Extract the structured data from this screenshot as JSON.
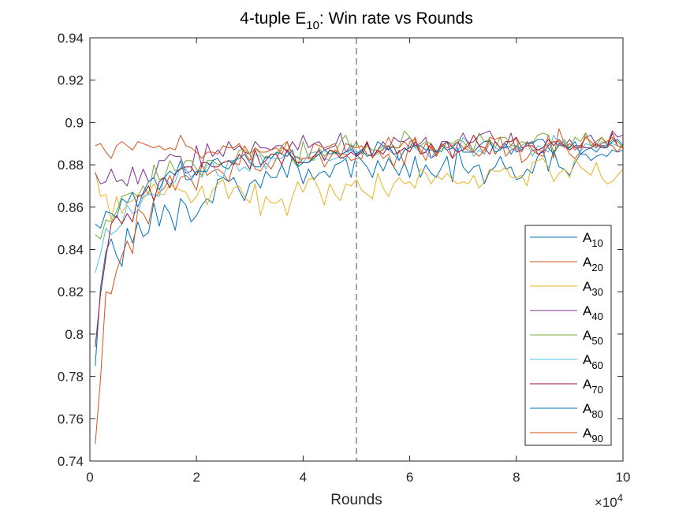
{
  "chart_data": {
    "type": "line",
    "title": {
      "prefix": "4-tuple E",
      "sub": "10",
      "suffix": ": Win rate vs Rounds"
    },
    "xlabel": "Rounds",
    "ylabel": "",
    "x_exponent_label": {
      "base": "×10",
      "exp": "4"
    },
    "xlim": [
      0,
      100000
    ],
    "ylim": [
      0.74,
      0.94
    ],
    "x_ticks": [
      0,
      20000,
      40000,
      60000,
      80000,
      100000
    ],
    "x_tick_labels": [
      "0",
      "2",
      "4",
      "6",
      "8",
      "10"
    ],
    "y_ticks": [
      0.74,
      0.76,
      0.78,
      0.8,
      0.82,
      0.84,
      0.86,
      0.88,
      0.9,
      0.92,
      0.94
    ],
    "y_tick_labels": [
      "0.74",
      "0.76",
      "0.78",
      "0.8",
      "0.82",
      "0.84",
      "0.86",
      "0.88",
      "0.9",
      "0.92",
      "0.94"
    ],
    "vline_x": 50000,
    "grid": false,
    "legend_position": "bottom-right",
    "x_sampling": {
      "start": 1000,
      "step": 1000,
      "count": 100
    },
    "series": [
      {
        "name": "A",
        "sub": "10",
        "color": "#0072BD",
        "values": [
          0.785,
          0.822,
          0.839,
          0.845,
          0.837,
          0.832,
          0.85,
          0.843,
          0.853,
          0.846,
          0.848,
          0.862,
          0.851,
          0.861,
          0.857,
          0.849,
          0.864,
          0.861,
          0.853,
          0.856,
          0.861,
          0.864,
          0.862,
          0.873,
          0.874,
          0.872,
          0.874,
          0.868,
          0.863,
          0.871,
          0.873,
          0.869,
          0.877,
          0.874,
          0.874,
          0.88,
          0.874,
          0.884,
          0.879,
          0.871,
          0.878,
          0.873,
          0.876,
          0.877,
          0.874,
          0.88,
          0.881,
          0.883,
          0.874,
          0.885,
          0.882,
          0.879,
          0.874,
          0.882,
          0.877,
          0.883,
          0.879,
          0.875,
          0.881,
          0.874,
          0.884,
          0.874,
          0.88,
          0.876,
          0.874,
          0.879,
          0.884,
          0.872,
          0.888,
          0.879,
          0.876,
          0.879,
          0.88,
          0.871,
          0.877,
          0.879,
          0.884,
          0.878,
          0.879,
          0.873,
          0.874,
          0.878,
          0.876,
          0.884,
          0.887,
          0.877,
          0.887,
          0.879,
          0.878,
          0.875,
          0.881,
          0.885,
          0.885,
          0.882,
          0.884,
          0.885,
          0.884,
          0.887,
          0.886,
          0.887
        ]
      },
      {
        "name": "A",
        "sub": "20",
        "color": "#D95319",
        "values": [
          0.748,
          0.779,
          0.82,
          0.819,
          0.83,
          0.837,
          0.844,
          0.838,
          0.859,
          0.857,
          0.852,
          0.864,
          0.867,
          0.869,
          0.875,
          0.868,
          0.874,
          0.875,
          0.873,
          0.868,
          0.88,
          0.875,
          0.877,
          0.878,
          0.876,
          0.872,
          0.881,
          0.88,
          0.889,
          0.885,
          0.878,
          0.877,
          0.881,
          0.878,
          0.883,
          0.888,
          0.887,
          0.883,
          0.88,
          0.883,
          0.883,
          0.884,
          0.885,
          0.879,
          0.883,
          0.887,
          0.885,
          0.885,
          0.882,
          0.883,
          0.883,
          0.891,
          0.883,
          0.887,
          0.883,
          0.885,
          0.879,
          0.887,
          0.88,
          0.891,
          0.892,
          0.887,
          0.882,
          0.889,
          0.884,
          0.889,
          0.887,
          0.883,
          0.886,
          0.887,
          0.891,
          0.886,
          0.889,
          0.885,
          0.892,
          0.885,
          0.888,
          0.888,
          0.889,
          0.893,
          0.881,
          0.883,
          0.887,
          0.887,
          0.886,
          0.894,
          0.883,
          0.897,
          0.89,
          0.885,
          0.883,
          0.886,
          0.895,
          0.889,
          0.891,
          0.893,
          0.89,
          0.889,
          0.886,
          0.89
        ]
      },
      {
        "name": "A",
        "sub": "30",
        "color": "#EDB120",
        "values": [
          0.877,
          0.865,
          0.866,
          0.854,
          0.865,
          0.857,
          0.862,
          0.863,
          0.866,
          0.864,
          0.867,
          0.871,
          0.866,
          0.866,
          0.871,
          0.869,
          0.868,
          0.867,
          0.862,
          0.865,
          0.87,
          0.861,
          0.868,
          0.871,
          0.873,
          0.864,
          0.869,
          0.87,
          0.865,
          0.862,
          0.871,
          0.856,
          0.865,
          0.862,
          0.862,
          0.864,
          0.856,
          0.865,
          0.872,
          0.867,
          0.873,
          0.874,
          0.868,
          0.861,
          0.871,
          0.866,
          0.863,
          0.871,
          0.87,
          0.873,
          0.868,
          0.866,
          0.864,
          0.876,
          0.869,
          0.865,
          0.871,
          0.874,
          0.871,
          0.872,
          0.869,
          0.878,
          0.876,
          0.871,
          0.875,
          0.873,
          0.876,
          0.873,
          0.871,
          0.872,
          0.871,
          0.875,
          0.869,
          0.872,
          0.878,
          0.877,
          0.877,
          0.879,
          0.874,
          0.874,
          0.875,
          0.87,
          0.881,
          0.882,
          0.883,
          0.879,
          0.872,
          0.876,
          0.878,
          0.874,
          0.883,
          0.879,
          0.877,
          0.875,
          0.881,
          0.874,
          0.871,
          0.872,
          0.875,
          0.878
        ]
      },
      {
        "name": "A",
        "sub": "40",
        "color": "#7E2F8E",
        "values": [
          0.876,
          0.871,
          0.872,
          0.878,
          0.872,
          0.873,
          0.87,
          0.879,
          0.871,
          0.878,
          0.872,
          0.874,
          0.882,
          0.882,
          0.885,
          0.884,
          0.884,
          0.876,
          0.877,
          0.889,
          0.879,
          0.89,
          0.884,
          0.887,
          0.884,
          0.891,
          0.887,
          0.889,
          0.886,
          0.885,
          0.891,
          0.888,
          0.888,
          0.887,
          0.889,
          0.889,
          0.886,
          0.891,
          0.887,
          0.894,
          0.888,
          0.89,
          0.891,
          0.887,
          0.888,
          0.889,
          0.895,
          0.886,
          0.889,
          0.884,
          0.887,
          0.89,
          0.884,
          0.887,
          0.891,
          0.887,
          0.893,
          0.891,
          0.891,
          0.893,
          0.889,
          0.89,
          0.893,
          0.883,
          0.885,
          0.891,
          0.891,
          0.883,
          0.89,
          0.895,
          0.89,
          0.891,
          0.894,
          0.895,
          0.896,
          0.891,
          0.888,
          0.888,
          0.895,
          0.886,
          0.887,
          0.89,
          0.891,
          0.885,
          0.886,
          0.889,
          0.891,
          0.889,
          0.889,
          0.892,
          0.888,
          0.888,
          0.893,
          0.894,
          0.889,
          0.889,
          0.889,
          0.896,
          0.893,
          0.894
        ]
      },
      {
        "name": "A",
        "sub": "50",
        "color": "#77AC30",
        "values": [
          0.847,
          0.845,
          0.854,
          0.853,
          0.858,
          0.865,
          0.866,
          0.867,
          0.865,
          0.87,
          0.866,
          0.88,
          0.873,
          0.874,
          0.882,
          0.877,
          0.878,
          0.882,
          0.882,
          0.878,
          0.875,
          0.882,
          0.882,
          0.88,
          0.881,
          0.882,
          0.881,
          0.887,
          0.887,
          0.885,
          0.888,
          0.885,
          0.883,
          0.885,
          0.885,
          0.889,
          0.891,
          0.882,
          0.879,
          0.891,
          0.883,
          0.882,
          0.888,
          0.884,
          0.887,
          0.885,
          0.891,
          0.894,
          0.887,
          0.891,
          0.885,
          0.889,
          0.887,
          0.887,
          0.889,
          0.889,
          0.888,
          0.888,
          0.896,
          0.893,
          0.888,
          0.889,
          0.891,
          0.89,
          0.885,
          0.887,
          0.891,
          0.89,
          0.892,
          0.891,
          0.888,
          0.887,
          0.895,
          0.891,
          0.892,
          0.888,
          0.893,
          0.893,
          0.889,
          0.889,
          0.891,
          0.89,
          0.89,
          0.894,
          0.895,
          0.894,
          0.886,
          0.889,
          0.892,
          0.888,
          0.893,
          0.891,
          0.895,
          0.889,
          0.889,
          0.893,
          0.889,
          0.892,
          0.891,
          0.888
        ]
      },
      {
        "name": "A",
        "sub": "60",
        "color": "#4DBEEE",
        "values": [
          0.829,
          0.838,
          0.85,
          0.847,
          0.849,
          0.852,
          0.861,
          0.857,
          0.858,
          0.865,
          0.866,
          0.866,
          0.865,
          0.874,
          0.871,
          0.872,
          0.879,
          0.878,
          0.874,
          0.877,
          0.874,
          0.88,
          0.881,
          0.875,
          0.874,
          0.882,
          0.882,
          0.877,
          0.879,
          0.877,
          0.885,
          0.884,
          0.878,
          0.883,
          0.883,
          0.883,
          0.886,
          0.883,
          0.884,
          0.881,
          0.885,
          0.886,
          0.886,
          0.883,
          0.882,
          0.883,
          0.884,
          0.882,
          0.89,
          0.886,
          0.886,
          0.885,
          0.884,
          0.885,
          0.888,
          0.887,
          0.885,
          0.882,
          0.887,
          0.89,
          0.888,
          0.886,
          0.886,
          0.883,
          0.887,
          0.886,
          0.891,
          0.889,
          0.886,
          0.893,
          0.89,
          0.884,
          0.887,
          0.885,
          0.89,
          0.888,
          0.887,
          0.889,
          0.888,
          0.886,
          0.889,
          0.891,
          0.884,
          0.889,
          0.888,
          0.886,
          0.894,
          0.89,
          0.891,
          0.887,
          0.889,
          0.886,
          0.89,
          0.889,
          0.888,
          0.891,
          0.89,
          0.89,
          0.889,
          0.888
        ]
      },
      {
        "name": "A",
        "sub": "70",
        "color": "#A2142F",
        "values": [
          0.794,
          0.819,
          0.836,
          0.852,
          0.856,
          0.852,
          0.857,
          0.853,
          0.865,
          0.866,
          0.87,
          0.863,
          0.872,
          0.874,
          0.869,
          0.876,
          0.878,
          0.879,
          0.879,
          0.875,
          0.881,
          0.881,
          0.879,
          0.879,
          0.881,
          0.882,
          0.88,
          0.885,
          0.882,
          0.878,
          0.887,
          0.88,
          0.882,
          0.885,
          0.885,
          0.88,
          0.887,
          0.883,
          0.881,
          0.881,
          0.881,
          0.884,
          0.887,
          0.882,
          0.887,
          0.886,
          0.883,
          0.884,
          0.886,
          0.884,
          0.886,
          0.891,
          0.884,
          0.887,
          0.885,
          0.889,
          0.885,
          0.886,
          0.888,
          0.886,
          0.891,
          0.885,
          0.886,
          0.89,
          0.886,
          0.889,
          0.891,
          0.888,
          0.886,
          0.887,
          0.889,
          0.894,
          0.889,
          0.888,
          0.885,
          0.891,
          0.888,
          0.891,
          0.891,
          0.893,
          0.888,
          0.889,
          0.889,
          0.887,
          0.888,
          0.892,
          0.889,
          0.892,
          0.889,
          0.887,
          0.889,
          0.889,
          0.888,
          0.888,
          0.89,
          0.888,
          0.888,
          0.895,
          0.889,
          0.888
        ]
      },
      {
        "name": "A",
        "sub": "80",
        "color": "#0072BD",
        "values": [
          0.852,
          0.85,
          0.858,
          0.857,
          0.855,
          0.864,
          0.862,
          0.867,
          0.86,
          0.867,
          0.872,
          0.874,
          0.868,
          0.874,
          0.877,
          0.875,
          0.882,
          0.873,
          0.873,
          0.877,
          0.877,
          0.877,
          0.882,
          0.883,
          0.879,
          0.878,
          0.882,
          0.883,
          0.885,
          0.881,
          0.879,
          0.879,
          0.884,
          0.883,
          0.886,
          0.885,
          0.884,
          0.887,
          0.879,
          0.881,
          0.881,
          0.883,
          0.885,
          0.887,
          0.885,
          0.886,
          0.885,
          0.886,
          0.887,
          0.885,
          0.887,
          0.884,
          0.885,
          0.891,
          0.889,
          0.887,
          0.889,
          0.882,
          0.887,
          0.888,
          0.889,
          0.889,
          0.887,
          0.887,
          0.886,
          0.889,
          0.887,
          0.888,
          0.891,
          0.886,
          0.886,
          0.886,
          0.889,
          0.891,
          0.891,
          0.886,
          0.887,
          0.89,
          0.885,
          0.889,
          0.887,
          0.89,
          0.89,
          0.892,
          0.892,
          0.888,
          0.885,
          0.89,
          0.889,
          0.888,
          0.891,
          0.885,
          0.887,
          0.888,
          0.886,
          0.889,
          0.888,
          0.891,
          0.892,
          0.889
        ]
      },
      {
        "name": "A",
        "sub": "90",
        "color": "#D95319",
        "values": [
          0.889,
          0.89,
          0.886,
          0.883,
          0.889,
          0.891,
          0.889,
          0.887,
          0.891,
          0.89,
          0.889,
          0.888,
          0.889,
          0.887,
          0.888,
          0.887,
          0.894,
          0.889,
          0.888,
          0.886,
          0.883,
          0.886,
          0.886,
          0.885,
          0.889,
          0.888,
          0.888,
          0.89,
          0.886,
          0.882,
          0.888,
          0.886,
          0.886,
          0.887,
          0.888,
          0.885,
          0.891,
          0.885,
          0.883,
          0.883,
          0.883,
          0.89,
          0.889,
          0.888,
          0.889,
          0.89,
          0.884,
          0.89,
          0.889,
          0.888,
          0.889,
          0.885,
          0.884,
          0.886,
          0.887,
          0.893,
          0.888,
          0.888,
          0.891,
          0.888,
          0.893,
          0.885,
          0.89,
          0.888,
          0.884,
          0.89,
          0.888,
          0.889,
          0.891,
          0.888,
          0.887,
          0.886,
          0.884,
          0.887,
          0.893,
          0.892,
          0.893,
          0.884,
          0.887,
          0.888,
          0.886,
          0.891,
          0.887,
          0.885,
          0.884,
          0.89,
          0.891,
          0.891,
          0.888,
          0.89,
          0.887,
          0.889,
          0.893,
          0.891,
          0.888,
          0.89,
          0.891,
          0.893,
          0.889,
          0.888
        ]
      }
    ]
  }
}
